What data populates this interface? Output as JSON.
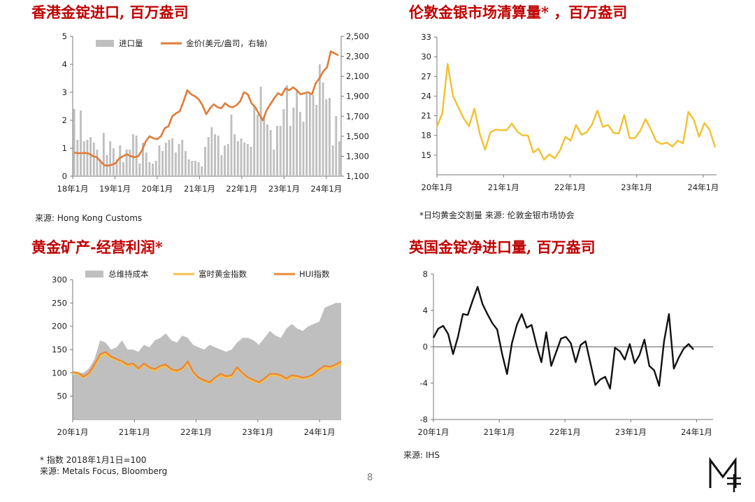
{
  "page": {
    "number": "8"
  },
  "panels": [
    {
      "title": "香港金锭进口, 百万盎司",
      "source": "来源: Hong Kong Customs"
    },
    {
      "title": "伦敦金银市场清算量* ，百万盎司",
      "source": "*日均黄金交割量 来源: 伦敦金银市场协会"
    },
    {
      "title": "黄金矿产-经营利润*",
      "source_lines": [
        "* 指数 2018年1月1日=100",
        "来源: Metals Focus, Bloomberg"
      ]
    },
    {
      "title": "英国金锭净进口量, 百万盎司",
      "source": "来源: IHS"
    }
  ],
  "colors": {
    "title": "#c00000",
    "bar_gray": "#bfbfbf",
    "gold_orange": "#e07b39",
    "lbma_yellow": "#f2c12e",
    "ftse_yellow": "#f6c04a",
    "hui_orange": "#e8893a",
    "uk_black": "#111111"
  },
  "chart_data": [
    {
      "type": "bar+line",
      "x_tick_labels": [
        "18年1月",
        "19年1月",
        "20年1月",
        "21年1月",
        "22年1月",
        "23年1月",
        "24年1月"
      ],
      "ylim": [
        0,
        5
      ],
      "y_ticks": [
        "0",
        "1",
        "2",
        "3",
        "4",
        "5"
      ],
      "y2lim": [
        1100,
        2500
      ],
      "y2_ticks": [
        "1,100",
        "1,300",
        "1,500",
        "1,700",
        "1,900",
        "2,100",
        "2,300",
        "2,500"
      ],
      "series": [
        {
          "name": "进口量",
          "axis": "left",
          "kind": "bar",
          "values": [
            2.4,
            1.3,
            2.35,
            1.25,
            1.3,
            1.4,
            1.2,
            0.95,
            0.6,
            1.55,
            0.75,
            1.25,
            1.0,
            0.6,
            1.1,
            0.5,
            0.95,
            0.95,
            1.5,
            1.45,
            0.45,
            1.2,
            0.85,
            0.5,
            0.45,
            0.55,
            1.1,
            0.9,
            1.2,
            1.3,
            1.35,
            0.85,
            1.15,
            1.3,
            0.9,
            0.6,
            0.55,
            0.55,
            0.5,
            0.35,
            1.05,
            1.4,
            1.75,
            1.5,
            1.45,
            0.75,
            1.1,
            1.15,
            2.2,
            1.5,
            1.25,
            1.35,
            1.2,
            1.15,
            1.05,
            2.5,
            2.2,
            3.2,
            2.1,
            1.85,
            1.65,
            0.95,
            1.8,
            1.8,
            2.4,
            3.25,
            1.8,
            2.45,
            3.1,
            2.3,
            1.95,
            2.95,
            2.95,
            2.9,
            2.55,
            4.0,
            3.35,
            2.75,
            2.8,
            1.1,
            2.15,
            1.25
          ]
        },
        {
          "name": "金价(美元/盎司，右轴)",
          "axis": "right",
          "kind": "line",
          "values": [
            1335,
            1330,
            1330,
            1333,
            1325,
            1300,
            1290,
            1250,
            1210,
            1205,
            1215,
            1230,
            1280,
            1300,
            1320,
            1300,
            1290,
            1300,
            1360,
            1450,
            1500,
            1480,
            1470,
            1500,
            1580,
            1600,
            1700,
            1730,
            1750,
            1850,
            1960,
            1920,
            1900,
            1870,
            1810,
            1720,
            1780,
            1820,
            1790,
            1780,
            1830,
            1800,
            1790,
            1810,
            1850,
            1940,
            1920,
            1830,
            1790,
            1720,
            1660,
            1760,
            1820,
            1880,
            1930,
            1910,
            1980,
            1960,
            1990,
            1960,
            1920,
            1930,
            1940,
            1920,
            2030,
            2080,
            2150,
            2190,
            2350,
            2330,
            2310
          ]
        }
      ]
    },
    {
      "type": "line",
      "x_tick_labels": [
        "20年1月",
        "21年1月",
        "22年1月",
        "23年1月",
        "24年1月"
      ],
      "ylim": [
        12,
        33
      ],
      "y_ticks": [
        "15",
        "18",
        "21",
        "24",
        "27",
        "30",
        "33"
      ],
      "series": [
        {
          "values": [
            19.3,
            21.4,
            28.9,
            24.0,
            22.3,
            20.6,
            19.4,
            22.1,
            18.3,
            15.8,
            18.5,
            18.9,
            18.8,
            18.8,
            19.8,
            18.6,
            18.0,
            18.0,
            15.4,
            16.0,
            14.3,
            15.1,
            14.5,
            15.7,
            17.8,
            17.2,
            19.6,
            18.1,
            18.5,
            19.7,
            21.8,
            19.3,
            19.6,
            18.4,
            18.3,
            21.1,
            17.6,
            17.6,
            18.7,
            20.5,
            18.9,
            17.1,
            16.7,
            16.9,
            16.3,
            17.2,
            16.8,
            21.6,
            20.4,
            17.8,
            19.9,
            18.8,
            16.2
          ]
        }
      ]
    },
    {
      "type": "area+line",
      "x_tick_labels": [
        "20年1月",
        "21年1月",
        "22年1月",
        "23年1月",
        "24年1月"
      ],
      "ylim": [
        0,
        300
      ],
      "y_ticks": [
        "50",
        "100",
        "150",
        "200",
        "250",
        "300"
      ],
      "series": [
        {
          "name": "总维持成本",
          "kind": "area",
          "values": [
            95,
            100,
            100,
            110,
            130,
            170,
            165,
            150,
            155,
            170,
            150,
            150,
            145,
            160,
            155,
            170,
            175,
            185,
            170,
            165,
            180,
            175,
            160,
            155,
            150,
            160,
            155,
            150,
            145,
            150,
            165,
            175,
            175,
            170,
            160,
            175,
            190,
            180,
            175,
            195,
            205,
            195,
            190,
            200,
            205,
            210,
            240,
            245,
            250,
            250
          ]
        },
        {
          "name": "富时黄金指数",
          "kind": "line",
          "values": [
            100,
            98,
            90,
            98,
            115,
            135,
            140,
            132,
            128,
            122,
            115,
            118,
            108,
            118,
            110,
            105,
            112,
            115,
            105,
            103,
            108,
            120,
            100,
            88,
            82,
            78,
            88,
            95,
            90,
            92,
            110,
            98,
            88,
            82,
            78,
            85,
            95,
            95,
            92,
            85,
            92,
            90,
            88,
            90,
            95,
            105,
            110,
            110,
            115,
            120
          ]
        },
        {
          "name": "HUI指数",
          "kind": "line",
          "values": [
            102,
            100,
            92,
            100,
            118,
            140,
            145,
            135,
            130,
            125,
            118,
            120,
            110,
            120,
            112,
            108,
            115,
            118,
            108,
            105,
            110,
            125,
            102,
            90,
            84,
            80,
            90,
            98,
            93,
            95,
            112,
            100,
            90,
            85,
            80,
            88,
            98,
            98,
            95,
            88,
            95,
            93,
            90,
            92,
            98,
            108,
            115,
            113,
            118,
            125
          ]
        }
      ]
    },
    {
      "type": "line",
      "x_tick_labels": [
        "20年1月",
        "21年1月",
        "22年1月",
        "23年1月",
        "24年1月"
      ],
      "ylim": [
        -8,
        8
      ],
      "y_ticks": [
        "8",
        "4",
        "0",
        "-4",
        "-8"
      ],
      "series": [
        {
          "values": [
            1.0,
            2.0,
            2.3,
            1.4,
            -0.8,
            1.1,
            3.6,
            3.5,
            5.1,
            6.6,
            4.7,
            3.6,
            2.6,
            1.9,
            -0.8,
            -3.0,
            0.4,
            2.4,
            3.6,
            2.1,
            2.4,
            0.2,
            -1.7,
            1.6,
            -2.1,
            -0.6,
            0.9,
            1.1,
            0.4,
            -1.7,
            0.2,
            0.6,
            -1.8,
            -4.2,
            -3.6,
            -3.3,
            -4.6,
            -0.1,
            -0.5,
            -1.4,
            0.3,
            -1.8,
            -0.9,
            0.8,
            -2.1,
            -2.6,
            -4.3,
            0.6,
            3.6,
            -2.4,
            -1.2,
            -0.2,
            0.3,
            -0.3
          ]
        }
      ]
    }
  ],
  "legends": {
    "hk": [
      "进口量",
      "金价(美元/盎司，右轴)"
    ],
    "mining": [
      "总维持成本",
      "富时黄金指数",
      "HUI指数"
    ]
  }
}
